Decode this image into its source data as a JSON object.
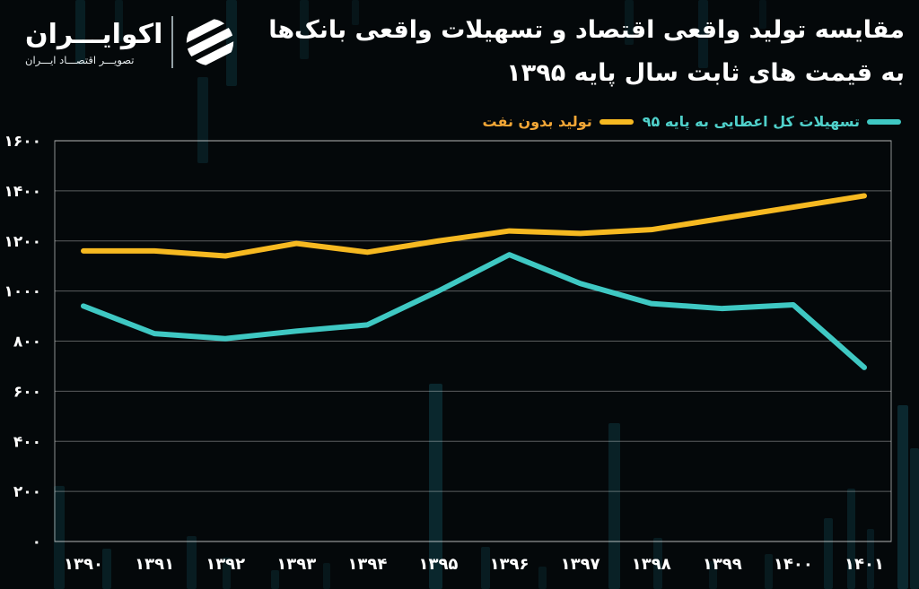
{
  "header": {
    "logo": {
      "name": "اکوایـــران",
      "tagline": "تصویـــر اقتصـــاد ایـــران"
    },
    "title_line1": "مقایسه تولید واقعی اقتصاد و تسهیلات واقعی بانک‌ها",
    "title_line2": "به قیمت های ثابت سال پایه ۱۳۹۵"
  },
  "chart_data": {
    "type": "line",
    "title": "مقایسه تولید واقعی اقتصاد و تسهیلات واقعی بانک‌ها به قیمت های ثابت سال پایه ۱۳۹۵",
    "categories": [
      "۱۳۹۰",
      "۱۳۹۱",
      "۱۳۹۲",
      "۱۳۹۳",
      "۱۳۹۴",
      "۱۳۹۵",
      "۱۳۹۶",
      "۱۳۹۷",
      "۱۳۹۸",
      "۱۳۹۹",
      "۱۴۰۰",
      "۱۴۰۱"
    ],
    "categories_western": [
      1390,
      1391,
      1392,
      1393,
      1394,
      1395,
      1396,
      1397,
      1398,
      1399,
      1400,
      1401
    ],
    "series": [
      {
        "name": "تسهیلات کل اعطایی به پایه ۹۵",
        "color": "#3fc8c3",
        "legend_text_color": "#4fd0ca",
        "values": [
          940,
          830,
          810,
          840,
          865,
          1000,
          1145,
          1030,
          950,
          930,
          945,
          695
        ]
      },
      {
        "name": "تولید بدون نفت",
        "color": "#f6b921",
        "legend_text_color": "#f2a636",
        "values": [
          1160,
          1160,
          1140,
          1190,
          1155,
          1200,
          1240,
          1230,
          1245,
          1290,
          1335,
          1380
        ]
      }
    ],
    "xlabel": "",
    "ylabel": "",
    "ylim": [
      0,
      1600
    ],
    "ytick_step": 200,
    "ytick_labels": [
      "۰",
      "۲۰۰",
      "۴۰۰",
      "۶۰۰",
      "۸۰۰",
      "۱۰۰۰",
      "۱۲۰۰",
      "۱۴۰۰",
      "۱۶۰۰"
    ],
    "grid": true,
    "legend_position": "top-right"
  },
  "colors": {
    "background": "#04080a",
    "plot_text": "#ffffff",
    "gridline": "rgba(255,255,255,0.35)",
    "plot_border": "rgba(255,255,255,0.55)",
    "background_bar": "#14535f"
  }
}
